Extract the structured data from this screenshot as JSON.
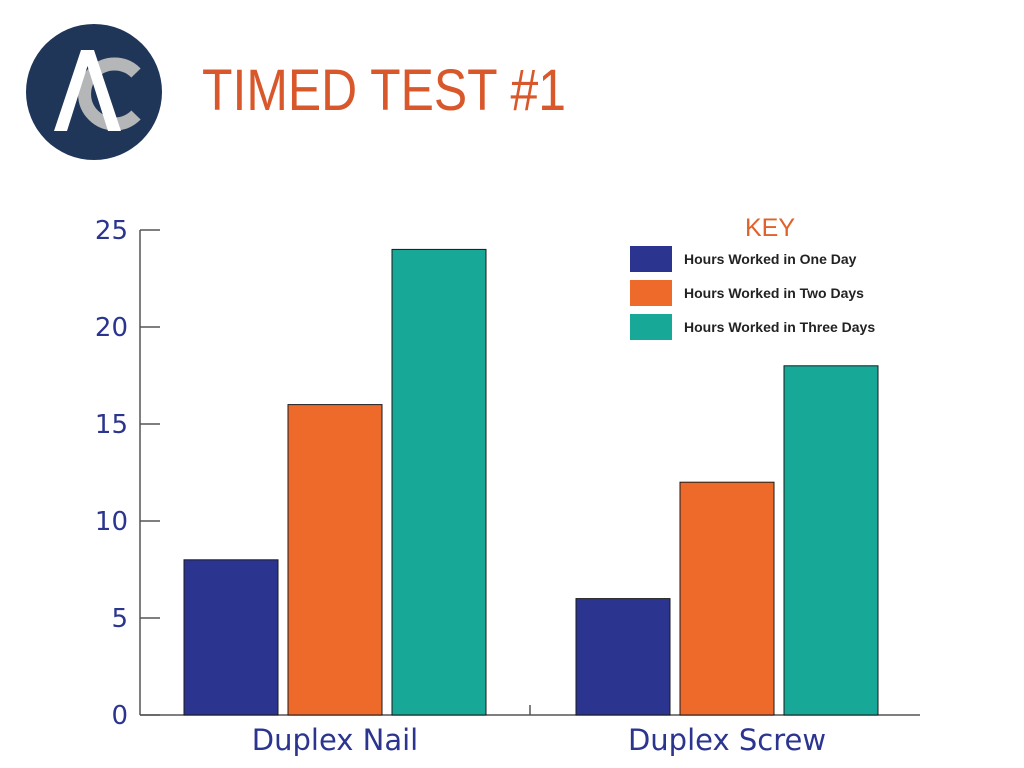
{
  "header": {
    "logo_text": "AC",
    "title": "TIMED TEST #1"
  },
  "colors": {
    "title": "#D9582B",
    "logo_bg": "#1F3659",
    "logo_a": "#FFFFFF",
    "logo_c": "#B5B6B8",
    "axis_text": "#2B3590",
    "axis_line": "#555555",
    "key_title": "#E0612A",
    "series": [
      "#2B3590",
      "#EE6A2A",
      "#17A898"
    ]
  },
  "chart_data": {
    "type": "bar",
    "categories": [
      "Duplex Nail",
      "Duplex Screw"
    ],
    "series": [
      {
        "name": "Hours Worked in One Day",
        "values": [
          8,
          6
        ]
      },
      {
        "name": "Hours Worked in Two Days",
        "values": [
          16,
          12
        ]
      },
      {
        "name": "Hours Worked in Three Days",
        "values": [
          24,
          18
        ]
      }
    ],
    "ylim": [
      0,
      25
    ],
    "yticks": [
      "0",
      "5",
      "10",
      "15",
      "20",
      "25"
    ],
    "xlabel": "",
    "ylabel": "",
    "grid": false,
    "legend": {
      "title": "KEY",
      "placement": "top-right"
    }
  }
}
